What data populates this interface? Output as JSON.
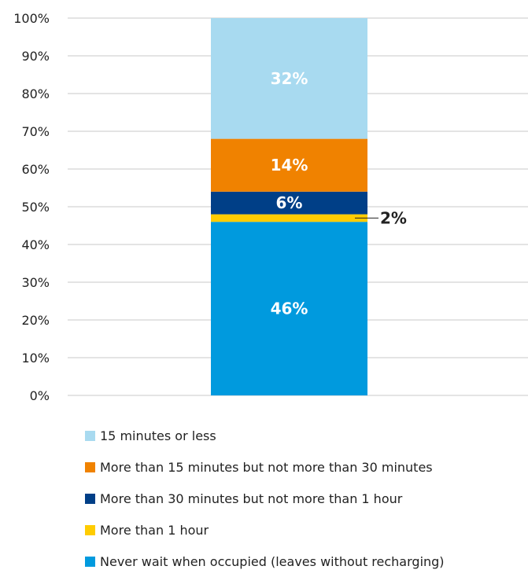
{
  "chart_data": {
    "type": "bar",
    "stacked": true,
    "categories": [
      ""
    ],
    "y_ticks": [
      "0%",
      "10%",
      "20%",
      "30%",
      "40%",
      "50%",
      "60%",
      "70%",
      "80%",
      "90%",
      "100%"
    ],
    "ylim": [
      0,
      100
    ],
    "grid": true,
    "legend_position": "bottom",
    "series": [
      {
        "name": "Never wait when occupied (leaves without recharging)",
        "values": [
          46
        ],
        "label": "46%",
        "color": "#009ADE"
      },
      {
        "name": "More than 1 hour",
        "values": [
          2
        ],
        "label": "2%",
        "color": "#FFCC00"
      },
      {
        "name": "More than 30 minutes but not more than 1 hour",
        "values": [
          6
        ],
        "label": "6%",
        "color": "#003F87"
      },
      {
        "name": "More than 15 minutes but not more than 30 minutes",
        "values": [
          14
        ],
        "label": "14%",
        "color": "#F08200"
      },
      {
        "name": "15 minutes or less",
        "values": [
          32
        ],
        "label": "32%",
        "color": "#A8DAF0"
      }
    ],
    "legend_order": [
      "15 minutes or less",
      "More than 15 minutes but not more than 30 minutes",
      "More than 30 minutes but not more than 1 hour",
      "More than 1 hour",
      "Never wait when occupied (leaves without recharging)"
    ]
  }
}
